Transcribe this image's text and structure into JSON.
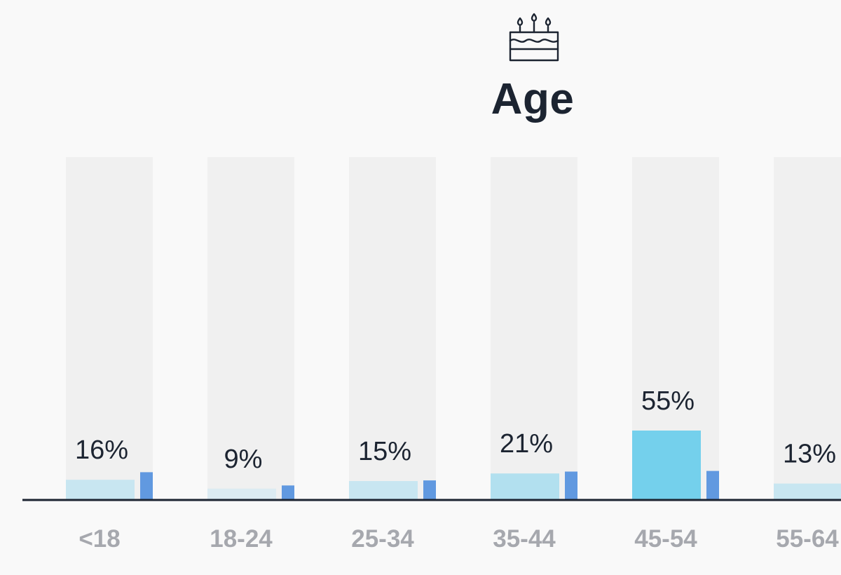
{
  "title": "Age",
  "header_icon": "birthday-cake-icon",
  "colors": {
    "background": "#f9f9f9",
    "track": "#f0f0f0",
    "bar_light": "#c8e6f1",
    "bar_faint": "#dcebf2",
    "bar_medium": "#b2e0ef",
    "bar_highlight": "#74d0ec",
    "compare_bar": "#6199e0",
    "axis": "#1c2431",
    "label_text": "#1c2431",
    "category_text": "#a6a8ae"
  },
  "chart_data": {
    "type": "bar",
    "title": "Age",
    "categories": [
      "<18",
      "18-24",
      "25-34",
      "35-44",
      "45-54",
      "55-64"
    ],
    "value_labels": [
      "16%",
      "9%",
      "15%",
      "21%",
      "55%",
      "13%"
    ],
    "series": [
      {
        "values": [
          16,
          9,
          15,
          21,
          55,
          13
        ]
      },
      {
        "values": [
          22,
          11.5,
          15.5,
          22.5,
          23,
          null
        ]
      }
    ],
    "ylim": [
      0,
      100
    ],
    "grid": false,
    "legend": "none"
  }
}
